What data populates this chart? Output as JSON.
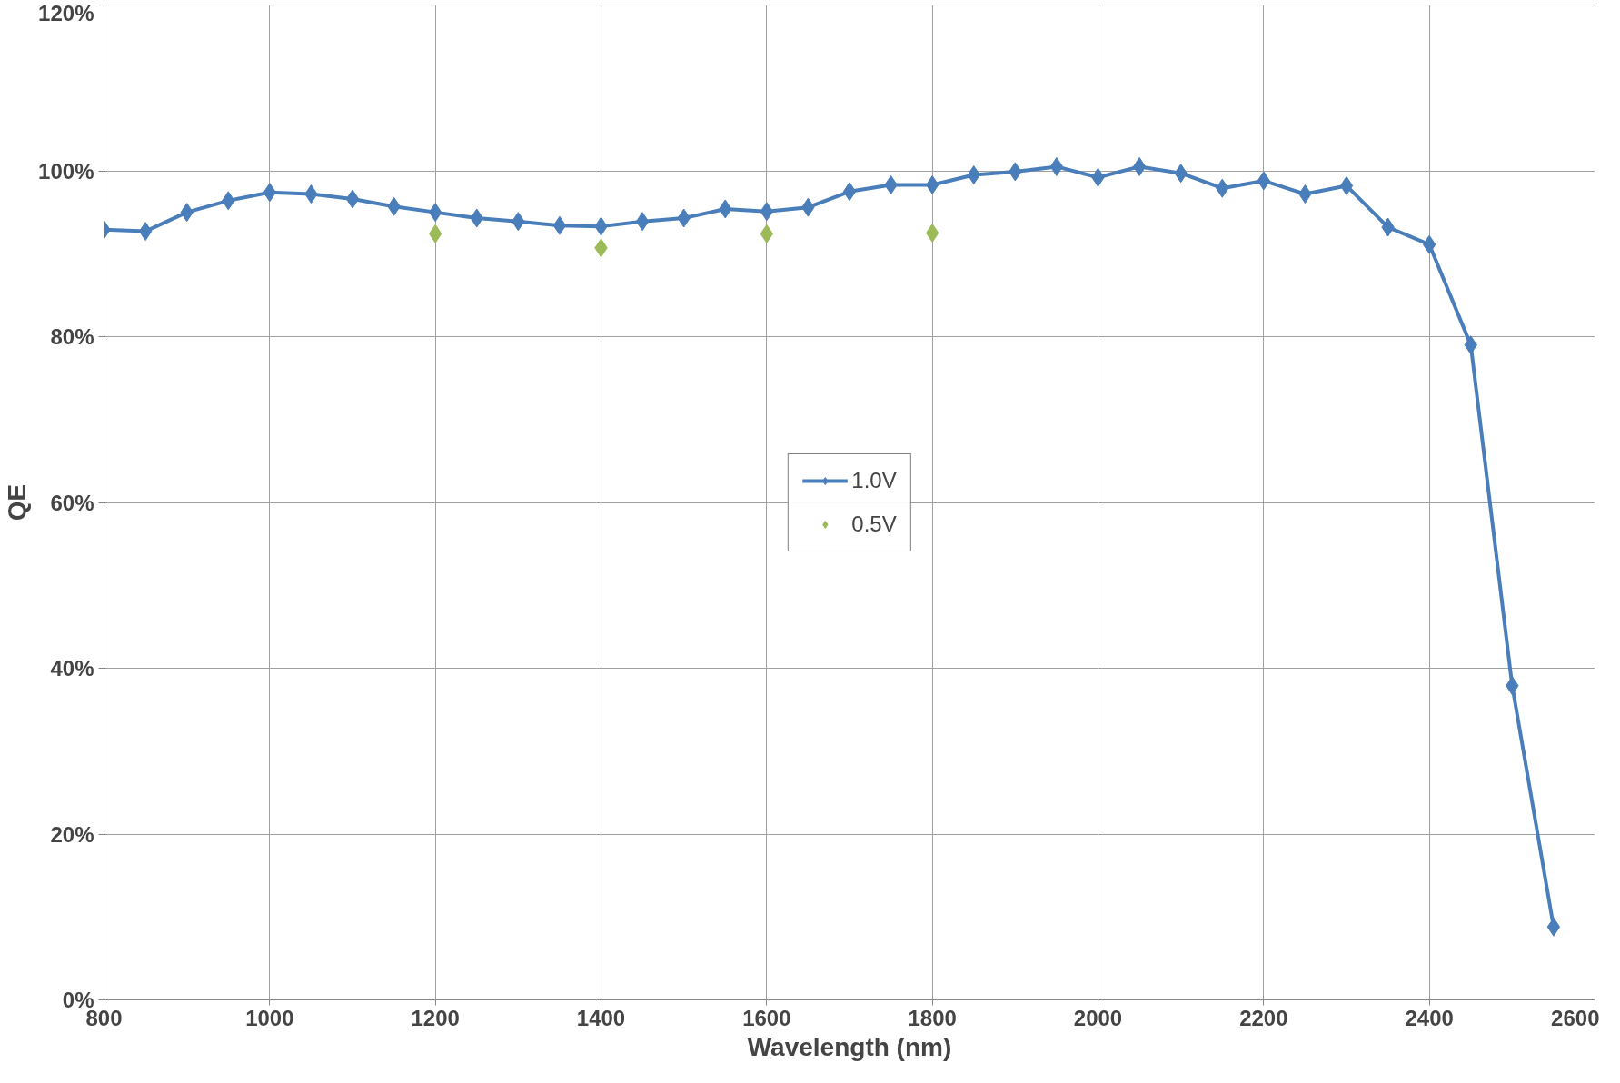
{
  "chart_data": {
    "type": "line",
    "xlabel": "Wavelength (nm)",
    "ylabel": "QE",
    "xlim": [
      800,
      2600
    ],
    "xticks": [
      800,
      1000,
      1200,
      1400,
      1600,
      1800,
      2000,
      2200,
      2400,
      2600
    ],
    "ylim": [
      0,
      120
    ],
    "yticks": [
      {
        "value": 0,
        "label": "0%"
      },
      {
        "value": 20,
        "label": "20%"
      },
      {
        "value": 40,
        "label": "40%"
      },
      {
        "value": 60,
        "label": "60%"
      },
      {
        "value": 80,
        "label": "80%"
      },
      {
        "value": 100,
        "label": "100%"
      },
      {
        "value": 120,
        "label": "120%"
      }
    ],
    "grid": true,
    "legend": "center",
    "marker": "diamond",
    "line_style": "solid",
    "series": [
      {
        "name": "1.0V",
        "color": "#4a7ebb",
        "x": [
          800,
          850,
          900,
          950,
          1000,
          1050,
          1100,
          1150,
          1200,
          1250,
          1300,
          1350,
          1400,
          1450,
          1500,
          1550,
          1600,
          1650,
          1700,
          1750,
          1800,
          1850,
          1900,
          1950,
          2000,
          2050,
          2100,
          2150,
          2200,
          2250,
          2300,
          2350,
          2400,
          2450,
          2500,
          2550
        ],
        "values": [
          92.9,
          92.7,
          95.0,
          96.4,
          97.4,
          97.2,
          96.6,
          95.7,
          95.0,
          94.3,
          93.9,
          93.4,
          93.3,
          93.9,
          94.3,
          95.4,
          95.1,
          95.6,
          97.5,
          98.3,
          98.3,
          99.5,
          99.9,
          100.5,
          99.2,
          100.5,
          99.7,
          97.9,
          98.8,
          97.2,
          98.2,
          93.2,
          91.1,
          79.0,
          37.9,
          8.8
        ]
      },
      {
        "name": "0.5V",
        "type": "scatter",
        "color": "#9bbb59",
        "x": [
          1200,
          1400,
          1600,
          1800
        ],
        "values": [
          92.4,
          90.7,
          92.4,
          92.5
        ]
      }
    ]
  }
}
